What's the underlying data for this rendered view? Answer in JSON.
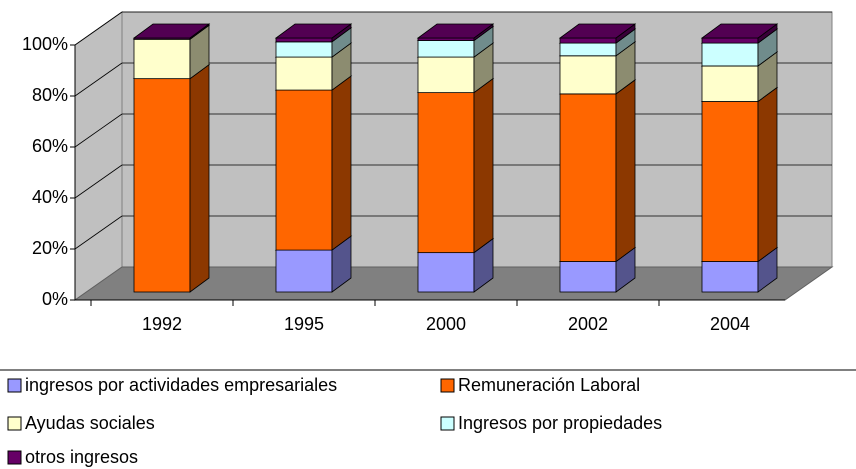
{
  "chart_data": {
    "type": "bar3d_stacked",
    "categories": [
      "1992",
      "1995",
      "2000",
      "2002",
      "2004"
    ],
    "series": [
      {
        "name": "ingresos por actividades empresariales",
        "color": "#9999ff",
        "values": [
          0,
          16.5,
          15.5,
          12,
          12
        ]
      },
      {
        "name": "Remuneración Laboral",
        "color": "#ff6600",
        "values": [
          84,
          63,
          63,
          66,
          63
        ]
      },
      {
        "name": "Ayudas sociales",
        "color": "#ffffcc",
        "values": [
          15.5,
          13,
          14,
          15,
          14
        ]
      },
      {
        "name": "Ingresos por propiedades",
        "color": "#ccffff",
        "values": [
          0,
          6,
          6.5,
          5,
          9
        ]
      },
      {
        "name": "otros ingresos",
        "color": "#660066",
        "values": [
          0.5,
          1.5,
          1,
          2,
          2
        ]
      }
    ],
    "ylim": [
      0,
      100
    ],
    "yticks": [
      {
        "value": 0,
        "label": "0%"
      },
      {
        "value": 20,
        "label": "20%"
      },
      {
        "value": 40,
        "label": "40%"
      },
      {
        "value": 60,
        "label": "60%"
      },
      {
        "value": 80,
        "label": "80%"
      },
      {
        "value": 100,
        "label": "100%"
      }
    ],
    "grid": true
  }
}
